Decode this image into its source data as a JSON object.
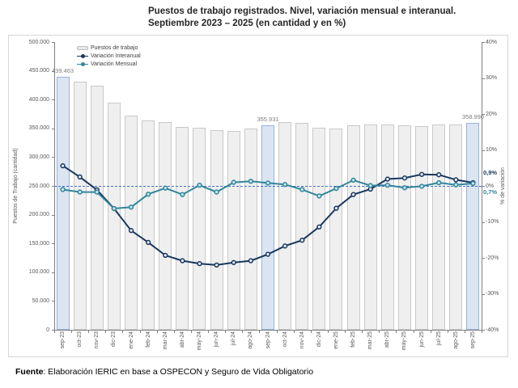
{
  "title": {
    "line1": "Puestos de trabajo registrados. Nivel,  variación mensual e interanual.",
    "line2": "Septiembre 2023 – 2025 (en cantidad y en %)"
  },
  "footer": {
    "prefix": "Fuente",
    "text": ": Elaboración IERIC  en base a OSPECON  y Seguro de Vida Obligatorio"
  },
  "chart_data": {
    "type": "bar",
    "subtype": "combo-bar-line",
    "title": "Puestos de trabajo registrados. Nivel, variación mensual e interanual. Septiembre 2023 – 2025 (en cantidad y en %)",
    "categories": [
      "sep-23",
      "oct-23",
      "nov-23",
      "dic-23",
      "ene-24",
      "feb-24",
      "mar-24",
      "abr-24",
      "may-24",
      "jun-24",
      "jul-24",
      "ago-24",
      "sep-24",
      "oct-24",
      "nov-24",
      "dic-24",
      "ene-25",
      "feb-25",
      "mar-25",
      "abr-25",
      "may-25",
      "jun-25",
      "jul-25",
      "ago-25",
      "sep-25"
    ],
    "series": [
      {
        "name": "Puestos de trabajo",
        "type": "bar",
        "axis": "left",
        "values": [
          439463,
          431500,
          423500,
          394000,
          372000,
          363500,
          361500,
          352500,
          351500,
          346500,
          345500,
          350000,
          355931,
          360500,
          359500,
          350500,
          349500,
          355000,
          356500,
          356500,
          356000,
          354000,
          356500,
          356500,
          358990
        ]
      },
      {
        "name": "Variación Interanual",
        "type": "line",
        "axis": "right",
        "values": [
          5.6,
          2.5,
          -1.1,
          -6.3,
          -12.4,
          -15.7,
          -19.3,
          -20.8,
          -21.6,
          -22.0,
          -21.3,
          -20.8,
          -19.0,
          -16.7,
          -15.1,
          -11.4,
          -6.2,
          -2.4,
          -0.9,
          1.9,
          2.2,
          3.2,
          3.1,
          1.7,
          0.9
        ]
      },
      {
        "name": "Variación Mensual",
        "type": "line",
        "axis": "right",
        "values": [
          -1.0,
          -1.7,
          -1.7,
          -6.3,
          -5.9,
          -2.3,
          -0.6,
          -2.4,
          0.2,
          -1.7,
          1.0,
          1.3,
          0.8,
          0.4,
          -1.0,
          -2.8,
          -0.7,
          1.6,
          0.1,
          0.2,
          -0.5,
          -0.1,
          0.9,
          0.3,
          0.7
        ]
      }
    ],
    "highlighted_bars": [
      0,
      12,
      24
    ],
    "bar_labels": {
      "0": "439.463",
      "12": "355.931",
      "24": "358.990"
    },
    "end_labels": [
      {
        "series": "Variación Interanual",
        "text": "0,9%"
      },
      {
        "series": "Variación Mensual",
        "text": "0,7%"
      }
    ],
    "left_axis": {
      "label": "Puestos de Trabajo (cantidad)",
      "min": 0,
      "max": 500000,
      "step": 50000,
      "tick_labels": [
        "500.000",
        "450.000",
        "400.000",
        "350.000",
        "300.000",
        "250.000",
        "200.000",
        "150.000",
        "100.000",
        "50.000",
        "0"
      ]
    },
    "right_axis": {
      "label": "% de variación",
      "min": -40,
      "max": 40,
      "step": 10,
      "tick_labels": [
        "40%",
        "30%",
        "20%",
        "10%",
        "0%",
        "-10%",
        "-20%",
        "-30%",
        "-40%"
      ]
    },
    "zero_line": {
      "value": 0,
      "style": "dashed"
    },
    "legend_position": "top-left-inside",
    "grid": false,
    "colors": {
      "bar": "#efefef",
      "bar_border": "#c9c9c9",
      "bar_highlight": "#dbe5f1",
      "bar_highlight_border": "#95b3d7",
      "interanual": "#17375e",
      "interanual_marker_fill": "#e9eff8",
      "mensual": "#31859c",
      "mensual_marker_fill": "#c6e4ed",
      "zero_line": "#4472c4"
    }
  }
}
